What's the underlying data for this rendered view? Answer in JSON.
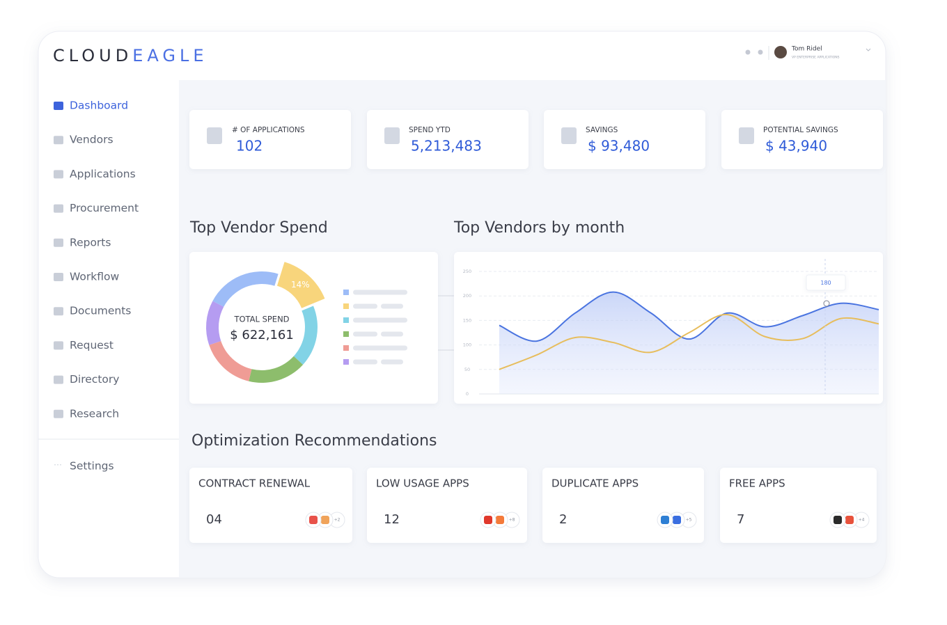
{
  "header": {
    "logo_dark": "CLOUD",
    "logo_accent": "EAGLE",
    "user_name": "Tom Ridel",
    "user_role": "VP ENTERPRISE APPLICATIONS"
  },
  "sidebar": {
    "items": [
      "Dashboard",
      "Vendors",
      "Applications",
      "Procurement",
      "Reports",
      "Workflow",
      "Documents",
      "Request",
      "Directory",
      "Research"
    ],
    "active": 0,
    "settings": "Settings"
  },
  "stats": [
    {
      "label": "# OF APPLICATIONS",
      "value": "102"
    },
    {
      "label": "SPEND YTD",
      "value": "5,213,483"
    },
    {
      "label": "SAVINGS",
      "value": "$ 93,480"
    },
    {
      "label": "POTENTIAL SAVINGS",
      "value": "$ 43,940"
    }
  ],
  "donut": {
    "title": "Top Vendor Spend",
    "center_label": "TOTAL SPEND",
    "center_value": "$ 622,161",
    "segments": [
      {
        "value": 22,
        "color": "#9dbcf7"
      },
      {
        "value": 14,
        "color": "#f8d57c",
        "label": "14%"
      },
      {
        "value": 18,
        "color": "#82d3e6"
      },
      {
        "value": 17,
        "color": "#8dbd6c"
      },
      {
        "value": 16,
        "color": "#ef9c95"
      },
      {
        "value": 13,
        "color": "#b59cf1"
      }
    ]
  },
  "line_chart": {
    "title": "Top Vendors by month",
    "ylim": [
      0,
      250
    ],
    "yticks": [
      0,
      50,
      100,
      150,
      200,
      250
    ],
    "grid": true,
    "tooltip": "180",
    "series": [
      {
        "color": "#4a74e0",
        "values": [
          140,
          108,
          165,
          208,
          165,
          112,
          165,
          137,
          160,
          185,
          172
        ]
      },
      {
        "color": "#e7bd5c",
        "values": [
          50,
          80,
          115,
          105,
          85,
          125,
          162,
          117,
          113,
          154,
          143
        ]
      }
    ]
  },
  "recommendations": {
    "title": "Optimization Recommendations",
    "cards": [
      {
        "title": "CONTRACT RENEWAL",
        "count": "04",
        "more": "+2"
      },
      {
        "title": "LOW USAGE APPS",
        "count": "12",
        "more": "+8"
      },
      {
        "title": "DUPLICATE APPS",
        "count": "2",
        "more": "+5"
      },
      {
        "title": "FREE APPS",
        "count": "7",
        "more": "+4"
      }
    ]
  }
}
